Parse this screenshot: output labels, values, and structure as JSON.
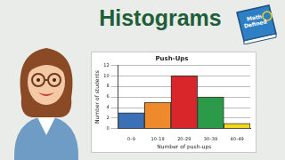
{
  "page": {
    "heading": "Histograms",
    "logo": "Math Defined"
  },
  "chart_data": {
    "type": "bar",
    "title": "Push-Ups",
    "x_label": "Number of push-ups",
    "y_label": "Number of students",
    "categories": [
      "0–9",
      "10–19",
      "20–29",
      "30–39",
      "40–49"
    ],
    "values": [
      3,
      5,
      10,
      6,
      1
    ],
    "colors": [
      "#3b6fb6",
      "#ee8a2c",
      "#d8262b",
      "#2b9a49",
      "#f2d61c"
    ],
    "ylim": [
      0,
      12
    ],
    "yticks": [
      0,
      2,
      4,
      6,
      8,
      10,
      12
    ],
    "grid": true
  }
}
